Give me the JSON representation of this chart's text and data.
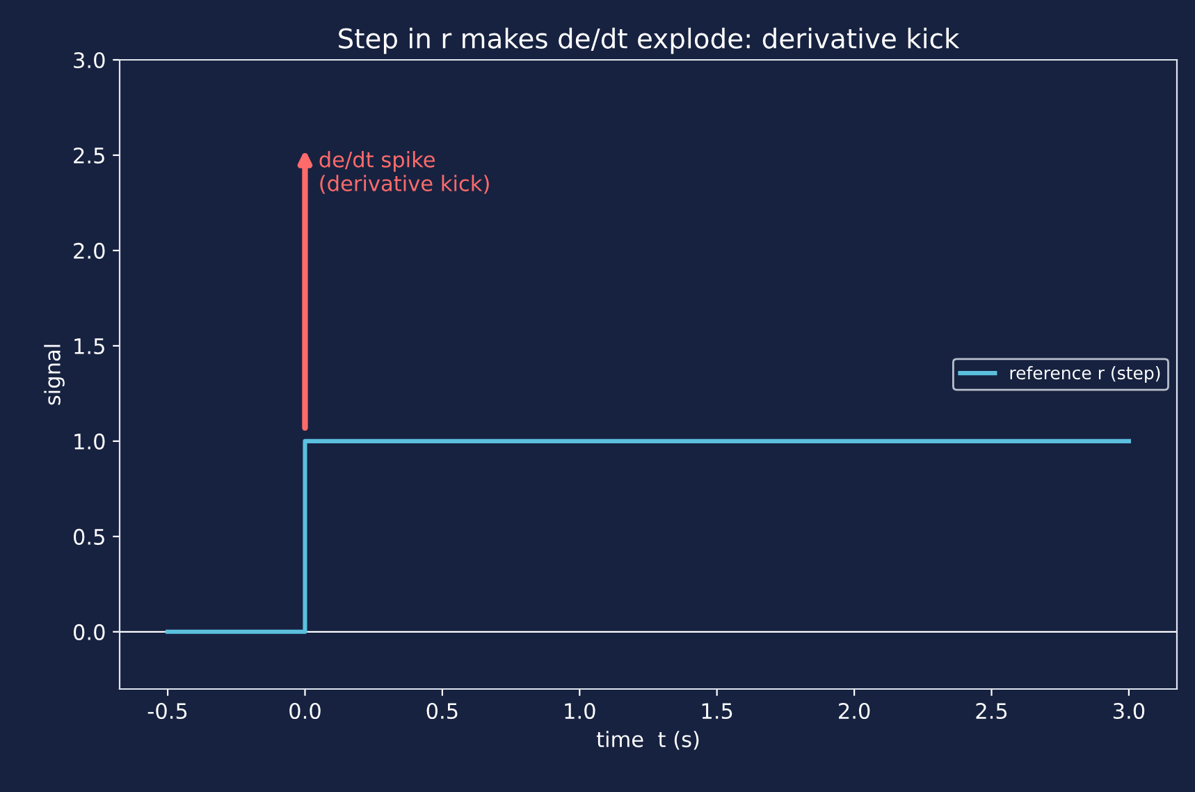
{
  "chart_data": {
    "type": "step",
    "title": "Step in r makes de/dt explode: derivative kick",
    "xlabel": "time  t (s)",
    "ylabel": "signal",
    "series": [
      {
        "name": "reference r (step)",
        "color": "#5bc0de",
        "x": [
          -0.5,
          0,
          3
        ],
        "values": [
          0,
          1,
          1
        ]
      }
    ],
    "xlim": [
      -0.675,
      3.175
    ],
    "xticks": [
      -0.5,
      {
        "value": 0,
        "label": "0.0"
      },
      0.5,
      {
        "value": 1,
        "label": "1.0"
      },
      1.5,
      {
        "value": 2,
        "label": "2.0"
      },
      2.5,
      {
        "value": 3,
        "label": "3.0"
      }
    ],
    "ylim": [
      -0.3,
      3.0
    ],
    "yticks": [
      {
        "value": 0,
        "label": "0.0"
      },
      0.5,
      {
        "value": 1,
        "label": "1.0"
      },
      1.5,
      {
        "value": 2,
        "label": "2.0"
      },
      2.5,
      {
        "value": 3,
        "label": "3.0"
      }
    ],
    "ref_lines": [
      {
        "axis": "y",
        "value": 0,
        "color": "#ffffff"
      }
    ],
    "annotations": [
      "de/dt spike\n(derivative kick)"
    ],
    "grid": false,
    "legend": "right"
  }
}
